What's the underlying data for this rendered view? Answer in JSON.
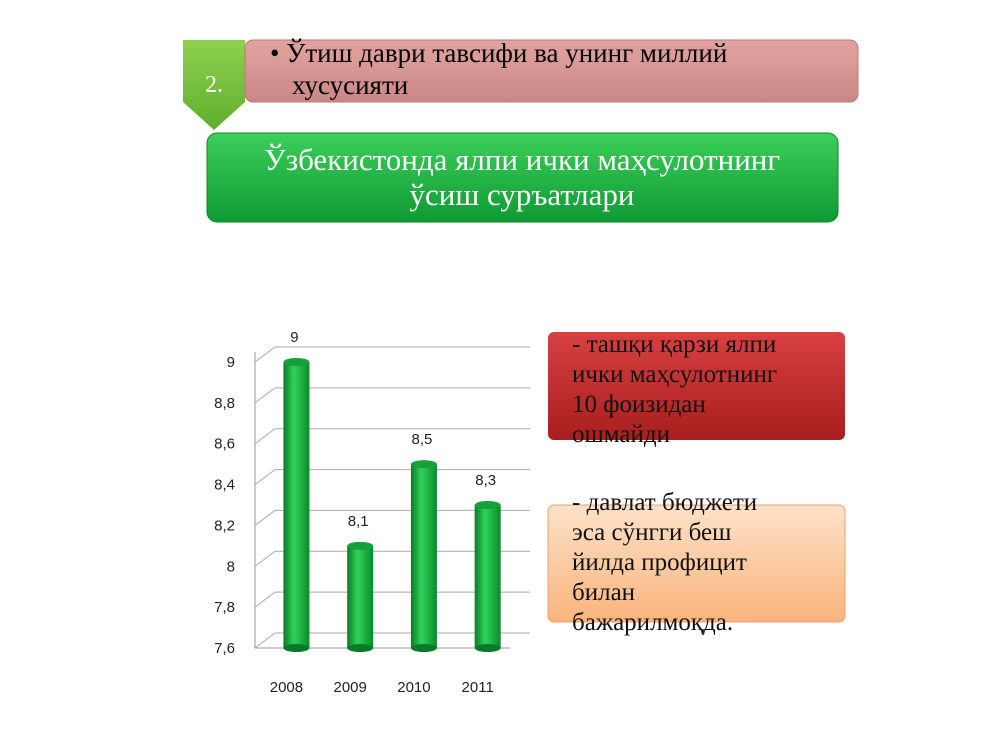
{
  "header": {
    "number": "2.",
    "title_lines": [
      "• Ўтиш даври тавсифи ва унинг миллий",
      "хусусияти"
    ]
  },
  "subtitle_lines": [
    "Ўзбекистонда ялпи ички маҳсулотнинг",
    "ўсиш суръатлари"
  ],
  "chart_data": {
    "type": "bar",
    "categories": [
      "2008",
      "2009",
      "2010",
      "2011"
    ],
    "values": [
      9,
      8.1,
      8.5,
      8.3
    ],
    "value_labels": [
      "9",
      "8,1",
      "8,5",
      "8,3"
    ],
    "color": "#14a03a",
    "ylim": [
      7.6,
      9
    ],
    "yticks": [
      {
        "value": 7.6,
        "label": "7,6"
      },
      {
        "value": 7.8,
        "label": "7,8"
      },
      8,
      {
        "value": 8.2,
        "label": "8,2"
      },
      {
        "value": 8.4,
        "label": "8,4"
      },
      {
        "value": 8.6,
        "label": "8,6"
      },
      {
        "value": 8.8,
        "label": "8,8"
      },
      9
    ],
    "grid": true
  },
  "notes": [
    {
      "lines": [
        "- ташқи қарзи ялпи",
        "ички маҳсулотнинг",
        "10 фоизидан",
        "ошмайди"
      ]
    },
    {
      "lines": [
        "- давлат бюджети",
        "эса сўнгги беш",
        "йилда профицит",
        "билан",
        "бажарилмоқда."
      ]
    }
  ]
}
